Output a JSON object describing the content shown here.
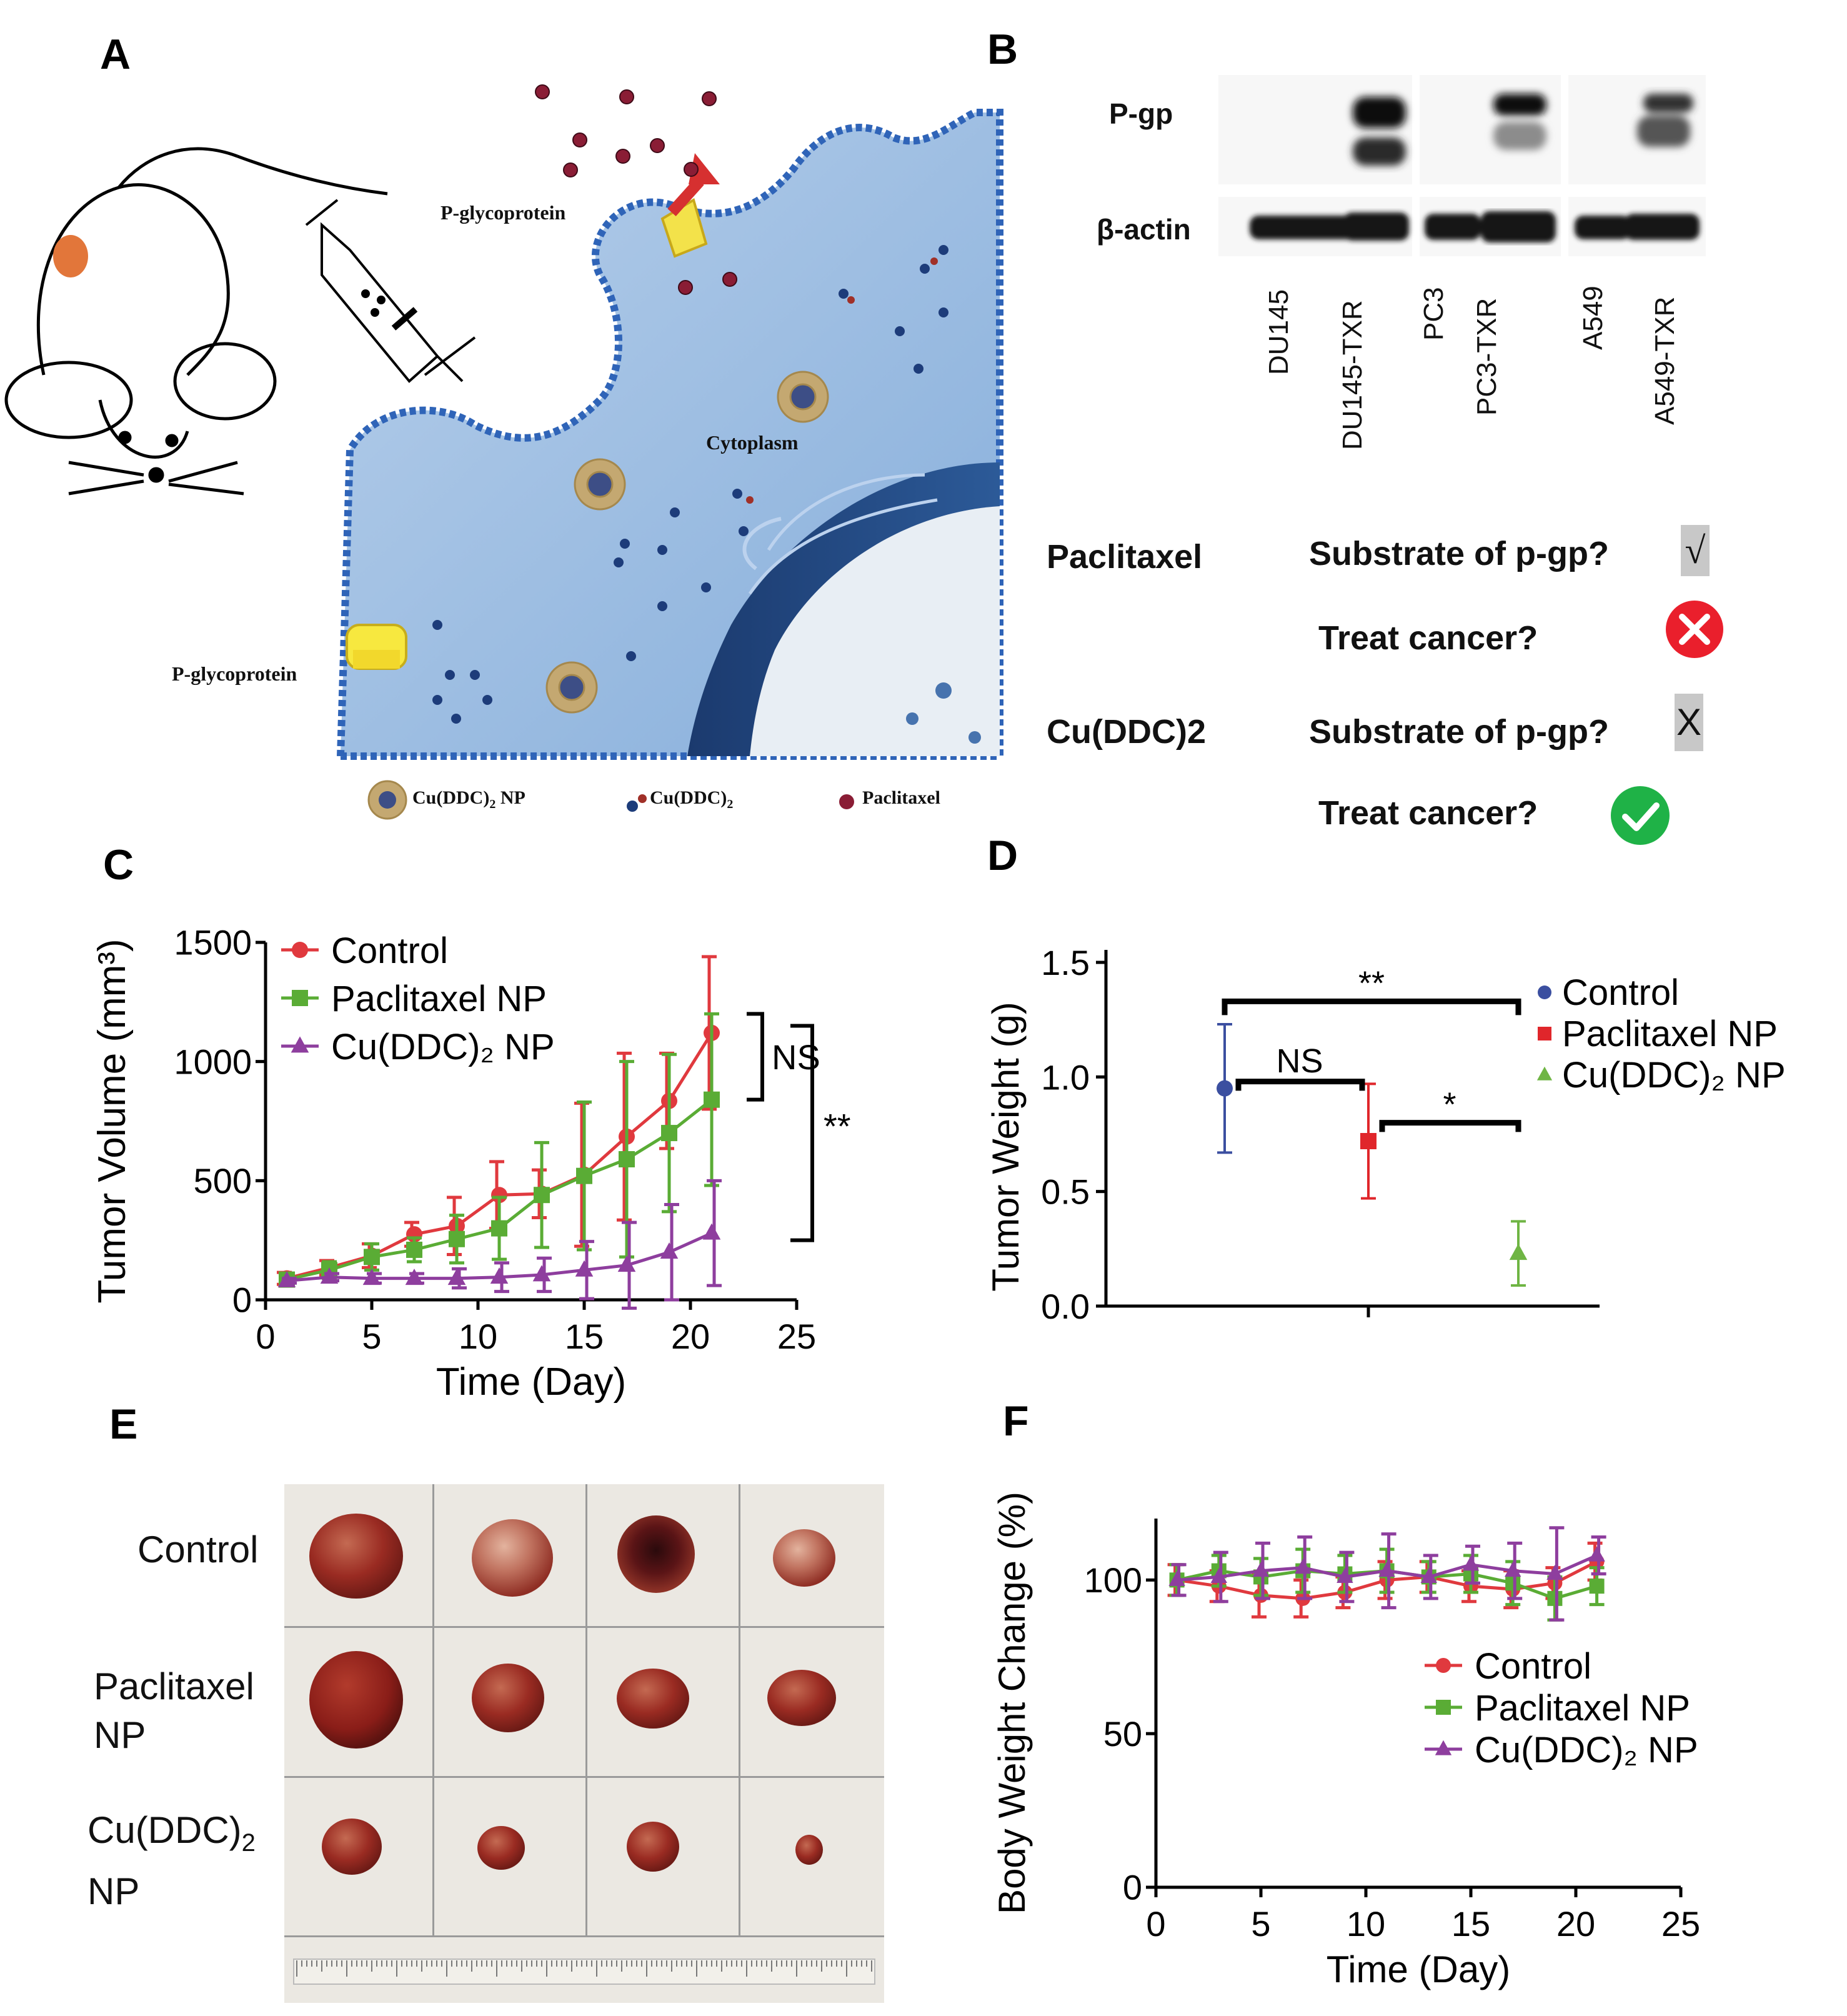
{
  "panels": {
    "a": {
      "letter": "A",
      "labels": {
        "pgp_top": "P-glycoprotein",
        "pgp_left": "P-glycoprotein",
        "cytoplasm": "Cytoplasm"
      },
      "legend": {
        "nanoparticle": "Cu(DDC)",
        "nanoparticle_sub": "2",
        "nanoparticle_suffix": " NP",
        "molecule": "Cu(DDC)",
        "molecule_sub": "2",
        "paclitaxel": "Paclitaxel"
      }
    },
    "b": {
      "letter": "B",
      "blot_rows": [
        "P-gp",
        "β-actin"
      ],
      "lanes": [
        "DU145",
        "DU145-TXR",
        "PC3",
        "PC3-TXR",
        "A549",
        "A549-TXR"
      ],
      "drugs": [
        {
          "name": "Paclitaxel",
          "q1": "Substrate of p-gp?",
          "a1": "√",
          "q2": "Treat cancer?",
          "a2_icon": "red-x-icon"
        },
        {
          "name": "Cu(DDC)2",
          "q1": "Substrate of p-gp?",
          "a1": "X",
          "q2": "Treat cancer?",
          "a2_icon": "green-check-icon"
        }
      ]
    },
    "c": {
      "letter": "C"
    },
    "d": {
      "letter": "D"
    },
    "e": {
      "letter": "E",
      "rows": [
        "Control",
        "Paclitaxel\nNP"
      ],
      "row3_main": "Cu(DDC)",
      "row3_sub": "2",
      "row3_np": "NP"
    },
    "f": {
      "letter": "F"
    }
  },
  "chart_data": [
    {
      "panel": "C",
      "type": "line",
      "xlabel": "Time (Day)",
      "ylabel": "Tumor Volume (mm³)",
      "xlim": [
        0,
        25
      ],
      "ylim": [
        0,
        1500
      ],
      "xticks": [
        0,
        5,
        10,
        15,
        20,
        25
      ],
      "yticks": [
        0,
        500,
        1000,
        1500
      ],
      "x": [
        1,
        3,
        5,
        7,
        9,
        11,
        13,
        15,
        17,
        19,
        21
      ],
      "series": [
        {
          "name": "Control",
          "color": "#e0393e",
          "marker": "circle",
          "values": [
            90,
            135,
            185,
            275,
            310,
            440,
            445,
            525,
            685,
            835,
            1120
          ],
          "err": [
            25,
            30,
            50,
            50,
            120,
            140,
            100,
            300,
            350,
            200,
            320
          ]
        },
        {
          "name": "Paclitaxel NP",
          "color": "#5aac35",
          "marker": "square",
          "values": [
            85,
            125,
            180,
            210,
            255,
            300,
            440,
            520,
            590,
            700,
            840
          ],
          "err": [
            25,
            35,
            55,
            50,
            100,
            130,
            220,
            310,
            410,
            330,
            360
          ]
        },
        {
          "name": "Cu(DDC)₂ NP",
          "color": "#8e3e9e",
          "marker": "triangle",
          "values": [
            80,
            95,
            90,
            90,
            90,
            95,
            105,
            125,
            145,
            200,
            280
          ],
          "err": [
            10,
            15,
            20,
            20,
            40,
            60,
            70,
            120,
            180,
            200,
            220
          ]
        }
      ],
      "annotations": [
        "NS",
        "**"
      ]
    },
    {
      "panel": "D",
      "type": "scatter",
      "ylabel": "Tumor Weight (g)",
      "ylim": [
        0,
        1.5
      ],
      "yticks": [
        "0.0",
        "0.5",
        "1.0",
        "1.5"
      ],
      "series": [
        {
          "name": "Control",
          "color": "#3b4fa0",
          "marker": "circle",
          "value": 0.95,
          "err": 0.28
        },
        {
          "name": "Paclitaxel NP",
          "color": "#e0262b",
          "marker": "square",
          "value": 0.72,
          "err": 0.25
        },
        {
          "name": "Cu(DDC)₂ NP",
          "color": "#6fb544",
          "marker": "triangle",
          "value": 0.23,
          "err": 0.14
        }
      ],
      "annotations": [
        "**",
        "NS",
        "*"
      ]
    },
    {
      "panel": "F",
      "type": "line",
      "xlabel": "Time (Day)",
      "ylabel": "Body Weight Change (%)",
      "xlim": [
        0,
        25
      ],
      "ylim": [
        0,
        120
      ],
      "xticks": [
        0,
        5,
        10,
        15,
        20,
        25
      ],
      "yticks": [
        0,
        50,
        100
      ],
      "x": [
        1,
        3,
        5,
        7,
        9,
        11,
        13,
        15,
        17,
        19,
        21
      ],
      "series": [
        {
          "name": "Control",
          "color": "#e0393e",
          "marker": "circle",
          "values": [
            100,
            98,
            95,
            94,
            96,
            100,
            101,
            98,
            97,
            99,
            106
          ],
          "err": [
            5,
            5,
            7,
            6,
            5,
            6,
            5,
            5,
            6,
            5,
            6
          ]
        },
        {
          "name": "Paclitaxel NP",
          "color": "#5aac35",
          "marker": "square",
          "values": [
            100,
            103,
            101,
            103,
            102,
            103,
            101,
            102,
            99,
            94,
            98
          ],
          "err": [
            5,
            5,
            6,
            7,
            6,
            7,
            5,
            6,
            7,
            7,
            6
          ]
        },
        {
          "name": "Cu(DDC)₂ NP",
          "color": "#8e3e9e",
          "marker": "triangle",
          "values": [
            100,
            101,
            103,
            104,
            101,
            103,
            101,
            105,
            103,
            102,
            108
          ],
          "err": [
            5,
            8,
            9,
            10,
            8,
            12,
            7,
            6,
            9,
            15,
            6
          ]
        }
      ]
    }
  ]
}
